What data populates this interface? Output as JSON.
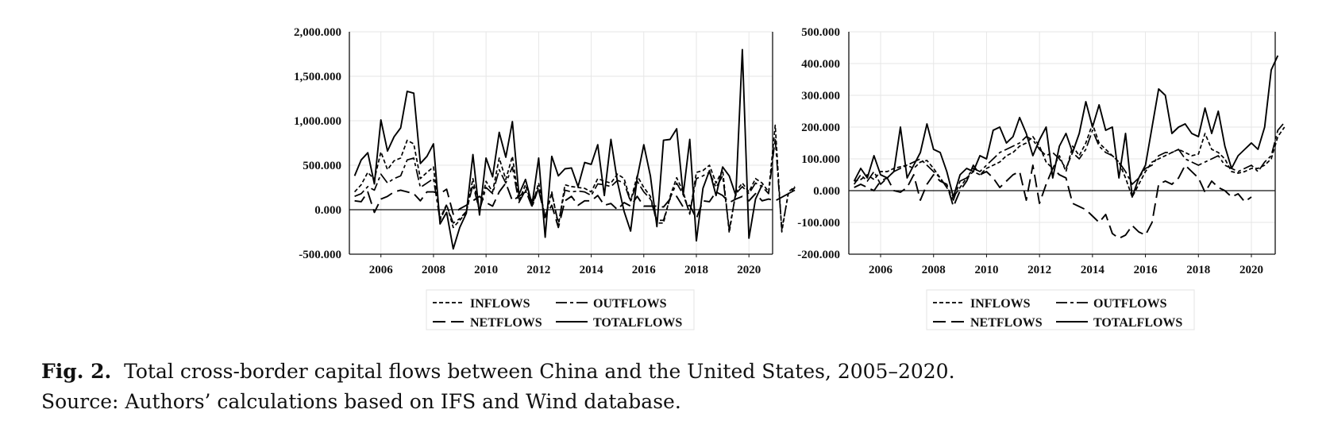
{
  "chart_data": [
    {
      "type": "line",
      "ylim": [
        -500,
        2000
      ],
      "yticks": [
        "2,000.000",
        "1,500.000",
        "1,000.000",
        "500.000",
        "0.000",
        "-500.000"
      ],
      "ytick_values": [
        2000,
        1500,
        1000,
        500,
        0,
        -500
      ],
      "xticks": [
        "2006",
        "2008",
        "2010",
        "2012",
        "2014",
        "2016",
        "2018",
        "2020"
      ],
      "xlim": [
        2004.8,
        2020.9
      ],
      "x_start": 2005.0,
      "x_step": 0.25,
      "grid": true,
      "legend_position": "bottom-center",
      "series": [
        {
          "name": "INFLOWS",
          "style": "short-dash",
          "values": [
            200,
            280,
            420,
            340,
            650,
            450,
            550,
            580,
            780,
            740,
            350,
            420,
            480,
            -100,
            60,
            -200,
            -120,
            -30,
            350,
            -20,
            320,
            200,
            580,
            340,
            600,
            100,
            280,
            40,
            300,
            -100,
            200,
            -180,
            280,
            260,
            250,
            240,
            200,
            350,
            320,
            300,
            400,
            350,
            100,
            380,
            250,
            150,
            -150,
            -150,
            150,
            360,
            200,
            -50,
            420,
            440,
            500,
            300,
            450,
            -260,
            200,
            300,
            200,
            350,
            300,
            200,
            950,
            -250,
            200,
            260
          ]
        },
        {
          "name": "OUTFLOWS",
          "style": "dash-dot",
          "values": [
            150,
            180,
            260,
            220,
            400,
            300,
            350,
            380,
            560,
            580,
            250,
            300,
            350,
            -120,
            50,
            -150,
            -100,
            -20,
            280,
            -10,
            250,
            180,
            450,
            300,
            480,
            80,
            220,
            30,
            250,
            -80,
            180,
            -150,
            220,
            200,
            210,
            200,
            160,
            290,
            280,
            260,
            330,
            300,
            90,
            320,
            200,
            120,
            -120,
            -120,
            130,
            300,
            170,
            -40,
            350,
            380,
            420,
            250,
            380,
            -220,
            180,
            260,
            180,
            300,
            260,
            180,
            800,
            -220,
            180,
            220
          ]
        },
        {
          "name": "NETFLOWS",
          "style": "long-dash",
          "values": [
            100,
            90,
            200,
            -30,
            120,
            150,
            200,
            220,
            200,
            180,
            100,
            200,
            200,
            180,
            230,
            -50,
            10,
            50,
            100,
            150,
            80,
            40,
            200,
            300,
            100,
            150,
            200,
            100,
            220,
            -80,
            50,
            -200,
            100,
            150,
            50,
            100,
            100,
            160,
            50,
            70,
            0,
            80,
            40,
            150,
            40,
            40,
            40,
            30,
            120,
            150,
            30,
            50,
            -100,
            100,
            90,
            200,
            160,
            80,
            120,
            150,
            100,
            180,
            100,
            120,
            100,
            140,
            180,
            250
          ]
        },
        {
          "name": "TOTALFLOWS",
          "style": "solid",
          "values": [
            380,
            560,
            640,
            290,
            1010,
            660,
            820,
            920,
            1330,
            1310,
            520,
            600,
            740,
            -160,
            -30,
            -440,
            -200,
            -40,
            620,
            -60,
            580,
            370,
            870,
            590,
            990,
            170,
            340,
            60,
            580,
            -310,
            600,
            380,
            460,
            470,
            260,
            530,
            510,
            730,
            160,
            790,
            310,
            -20,
            -240,
            360,
            730,
            380,
            -190,
            780,
            790,
            910,
            170,
            790,
            -350,
            240,
            440,
            160,
            480,
            380,
            160,
            1800,
            -320,
            120,
            280
          ]
        }
      ]
    },
    {
      "type": "line",
      "ylim": [
        -200,
        500
      ],
      "yticks": [
        "500.000",
        "400.000",
        "300.000",
        "200.000",
        "100.000",
        "0.000",
        "-100.000",
        "-200.000"
      ],
      "ytick_values": [
        500,
        400,
        300,
        200,
        100,
        0,
        -100,
        -200
      ],
      "xticks": [
        "2006",
        "2008",
        "2010",
        "2012",
        "2014",
        "2016",
        "2018",
        "2020"
      ],
      "xlim": [
        2004.8,
        2020.9
      ],
      "x_start": 2005.0,
      "x_step": 0.25,
      "grid": true,
      "legend_position": "bottom-center",
      "series": [
        {
          "name": "INFLOWS",
          "style": "short-dash",
          "values": [
            30,
            35,
            50,
            35,
            60,
            60,
            70,
            75,
            80,
            70,
            90,
            95,
            70,
            40,
            10,
            -20,
            10,
            40,
            60,
            50,
            70,
            80,
            90,
            110,
            120,
            140,
            150,
            170,
            140,
            90,
            70,
            110,
            60,
            140,
            110,
            150,
            210,
            150,
            130,
            110,
            90,
            40,
            -20,
            20,
            60,
            90,
            100,
            110,
            120,
            130,
            120,
            110,
            115,
            180,
            130,
            120,
            100,
            60,
            55,
            60,
            70,
            70,
            80,
            100,
            170,
            200
          ]
        },
        {
          "name": "OUTFLOWS",
          "style": "dash-dot",
          "values": [
            20,
            50,
            30,
            60,
            20,
            40,
            60,
            70,
            80,
            90,
            100,
            80,
            60,
            40,
            10,
            -30,
            30,
            40,
            70,
            60,
            80,
            100,
            120,
            130,
            140,
            150,
            170,
            160,
            130,
            110,
            120,
            100,
            70,
            120,
            100,
            130,
            190,
            140,
            120,
            110,
            90,
            60,
            20,
            40,
            70,
            80,
            110,
            120,
            120,
            130,
            100,
            90,
            80,
            90,
            100,
            110,
            80,
            70,
            60,
            70,
            80,
            60,
            90,
            110,
            190,
            215
          ]
        },
        {
          "name": "NETFLOWS",
          "style": "long-dash",
          "values": [
            10,
            20,
            10,
            0,
            30,
            40,
            0,
            -5,
            10,
            50,
            -30,
            20,
            50,
            30,
            20,
            -50,
            0,
            30,
            80,
            50,
            60,
            40,
            10,
            30,
            50,
            60,
            -30,
            80,
            -40,
            20,
            70,
            50,
            40,
            -40,
            -50,
            -60,
            -80,
            -100,
            -75,
            -135,
            -150,
            -140,
            -110,
            -130,
            -140,
            -100,
            20,
            30,
            20,
            40,
            80,
            60,
            40,
            -5,
            30,
            10,
            0,
            -20,
            -10,
            -35,
            -20
          ]
        },
        {
          "name": "TOTALFLOWS",
          "style": "solid",
          "values": [
            30,
            70,
            40,
            110,
            50,
            40,
            60,
            200,
            40,
            80,
            120,
            210,
            130,
            120,
            60,
            -20,
            50,
            70,
            60,
            110,
            100,
            190,
            200,
            150,
            170,
            230,
            180,
            110,
            160,
            200,
            40,
            140,
            180,
            120,
            180,
            280,
            200,
            270,
            190,
            200,
            40,
            180,
            -20,
            40,
            80,
            200,
            320,
            300,
            180,
            200,
            210,
            180,
            170,
            260,
            180,
            250,
            140,
            70,
            110,
            130,
            150,
            130,
            200,
            380,
            425
          ]
        }
      ]
    }
  ],
  "legend": {
    "inflows_label": "INFLOWS",
    "outflows_label": "OUTFLOWS",
    "netflows_label": "NETFLOWS",
    "totalflows_label": "TOTALFLOWS"
  },
  "caption": {
    "fig_label": "Fig. 2.",
    "title": "Total cross-border capital flows between China and the United States, 2005–2020.",
    "source": "Source: Authors’ calculations based on IFS and Wind database."
  }
}
